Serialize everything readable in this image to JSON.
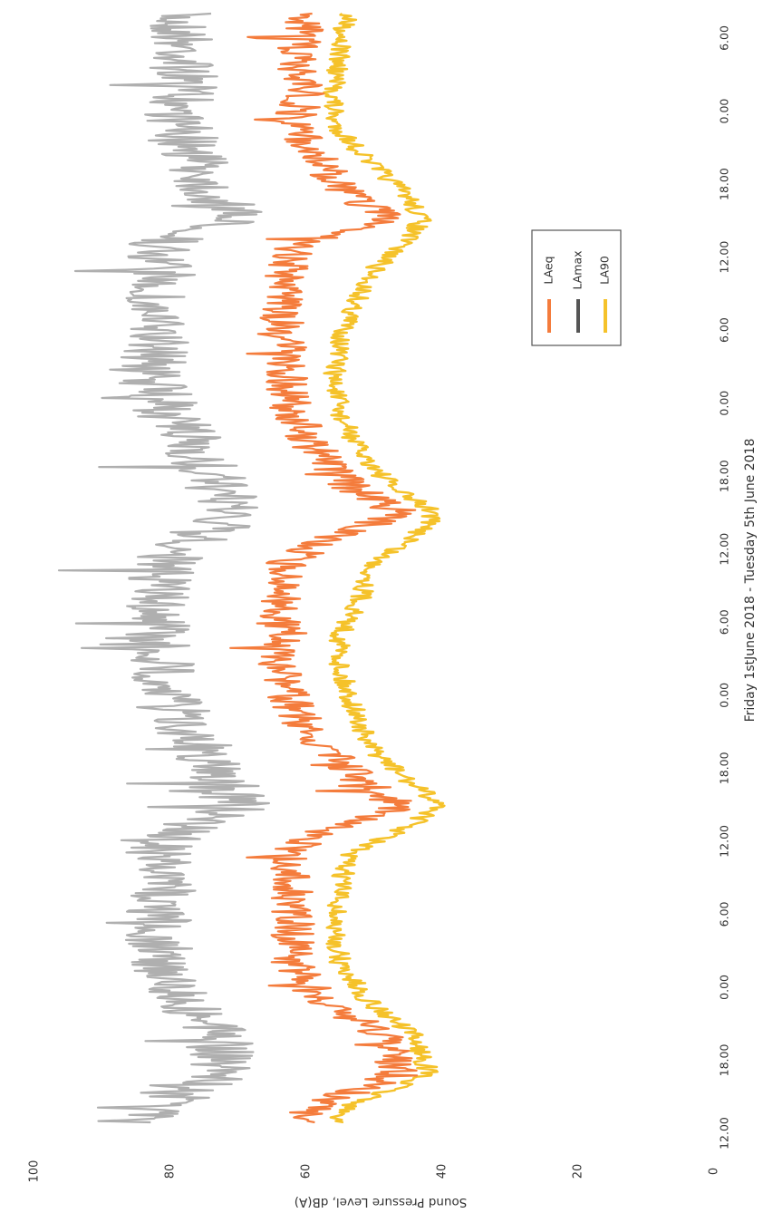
{
  "chart_data": {
    "type": "line",
    "orientation": "rotated 90 degrees counter-clockwise",
    "xlabel": "Friday 1stJune 2018 - Tuesday 5th June 2018",
    "ylabel": "Sound Pressure Level, dB(A)",
    "x_tick_labels": [
      "12.00",
      "18.00",
      "0.00",
      "6.00",
      "12.00",
      "18.00",
      "0.00",
      "6.00",
      "12.00",
      "18.00",
      "0.00",
      "6.00",
      "12.00",
      "18.00",
      "0.00",
      "6.00"
    ],
    "y_ticks": [
      0,
      20,
      40,
      60,
      80,
      100
    ],
    "ylim": [
      0,
      100
    ],
    "xlim_hours": [
      12,
      103
    ],
    "grid": false,
    "legend_placement": "right, middle (rotated)",
    "legend": [
      "LAeq",
      "LAmax",
      "LA90"
    ],
    "series": [
      {
        "name": "LAeq",
        "color": "#f47c3c",
        "x_hours": [
          12,
          15,
          18,
          21,
          24,
          27,
          29,
          31,
          33,
          36,
          39,
          42,
          45,
          48,
          51,
          53,
          55,
          57,
          60,
          63,
          66,
          69,
          72,
          75,
          77,
          79,
          81,
          84,
          87,
          90,
          93,
          96,
          99,
          102
        ],
        "values": [
          60,
          61,
          60,
          62,
          58,
          54,
          47,
          62,
          63,
          64,
          63,
          63,
          62,
          58,
          53,
          46,
          56,
          63,
          64,
          63,
          64,
          62,
          58,
          52,
          46,
          58,
          63,
          62,
          62,
          62,
          58,
          48,
          46,
          60
        ]
      },
      {
        "name": "LAmax",
        "color": "#a6a6a6",
        "x_hours": [
          12,
          15,
          18,
          21,
          24,
          27,
          29,
          31,
          33,
          36,
          39,
          42,
          45,
          48,
          51,
          53,
          55,
          57,
          60,
          63,
          66,
          69,
          72,
          75,
          77,
          79,
          81,
          84,
          87,
          90,
          93,
          96,
          99,
          102
        ],
        "values": [
          79,
          78,
          78,
          79,
          76,
          74,
          70,
          82,
          81,
          83,
          82,
          83,
          80,
          76,
          73,
          70,
          76,
          81,
          82,
          82,
          81,
          79,
          76,
          72,
          70,
          78,
          82,
          81,
          82,
          81,
          78,
          73,
          72,
          82
        ]
      },
      {
        "name": "LA90",
        "color": "#f5c22a",
        "x_hours": [
          12,
          15,
          18,
          21,
          24,
          27,
          29,
          31,
          33,
          36,
          39,
          42,
          45,
          48,
          51,
          53,
          55,
          57,
          60,
          63,
          66,
          69,
          72,
          75,
          77,
          79,
          81,
          84,
          87,
          90,
          93,
          96,
          99,
          102
        ],
        "values": [
          54,
          55,
          56,
          56,
          51,
          45,
          43,
          46,
          50,
          53,
          55,
          56,
          55,
          52,
          47,
          41,
          44,
          50,
          52,
          55,
          55,
          53,
          51,
          45,
          40,
          46,
          54,
          55,
          56,
          55,
          51,
          44,
          42,
          55
        ]
      }
    ]
  }
}
